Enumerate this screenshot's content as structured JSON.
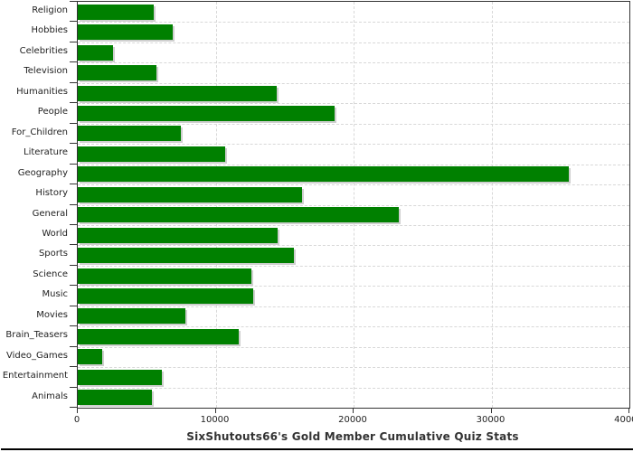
{
  "chart_data": {
    "type": "bar",
    "orientation": "horizontal",
    "title": "SixShutouts66's Gold Member Cumulative Quiz Stats",
    "categories": [
      "Religion",
      "Hobbies",
      "Celebrities",
      "Television",
      "Humanities",
      "People",
      "For_Children",
      "Literature",
      "Geography",
      "History",
      "General",
      "World",
      "Sports",
      "Science",
      "Music",
      "Movies",
      "Brain_Teasers",
      "Video_Games",
      "Entertainment",
      "Animals"
    ],
    "values": [
      5480,
      6870,
      2530,
      5690,
      14400,
      18620,
      7490,
      10670,
      35590,
      16280,
      23280,
      14500,
      15650,
      12620,
      12700,
      7780,
      11700,
      1740,
      6100,
      5400
    ],
    "xlim": [
      0,
      40000
    ],
    "x_ticks": [
      0,
      10000,
      20000,
      30000,
      40000
    ],
    "x_tick_labels": [
      "0",
      "10000",
      "20000",
      "30000",
      "40000"
    ],
    "xlabel": "",
    "ylabel": "",
    "grid": "dashed",
    "legend": "none",
    "colors": {
      "bar": "#008000",
      "bar_shadow": "#cfcfcf",
      "gridline": "#d8d8d8",
      "plot_border": "#333333",
      "title_text": "#333333",
      "label_text": "#222222"
    }
  }
}
